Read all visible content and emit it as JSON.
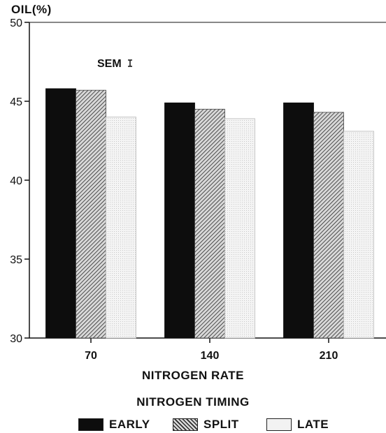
{
  "chart_data": {
    "type": "bar",
    "ylabel": "OIL(%)",
    "xlabel": "NITROGEN RATE",
    "categories": [
      "70",
      "140",
      "210"
    ],
    "ylim": [
      30,
      50
    ],
    "yticks": [
      30,
      35,
      40,
      45,
      50
    ],
    "grid": false,
    "legend_title": "NITROGEN TIMING",
    "legend_position": "bottom",
    "annotation": "SEM",
    "series": [
      {
        "name": "EARLY",
        "values": [
          45.8,
          44.9,
          44.9
        ],
        "color": "#0d0d0d"
      },
      {
        "name": "SPLIT",
        "values": [
          45.7,
          44.5,
          44.3
        ],
        "color": "#8a8a8a"
      },
      {
        "name": "LATE",
        "values": [
          44.0,
          43.9,
          43.1
        ],
        "color": "#f2f2f2"
      }
    ]
  }
}
